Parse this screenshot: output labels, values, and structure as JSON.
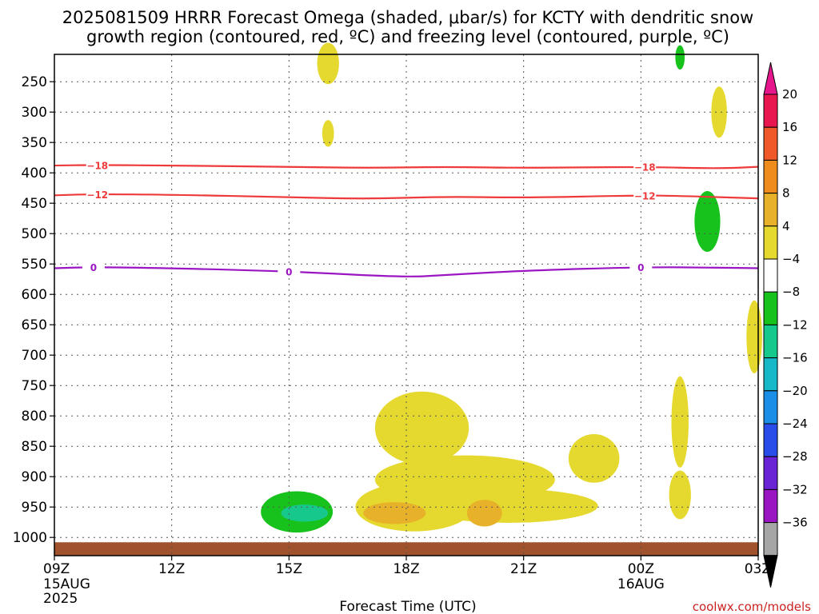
{
  "chart_data": {
    "type": "heatmap",
    "title_line1": "2025081509 HRRR Forecast Omega (shaded, μbar/s) for KCTY with dendritic snow",
    "title_line2": "growth region (contoured, red, ºC) and freezing level (contoured, purple, ºC)",
    "xlabel": "Forecast Time (UTC)",
    "credit": "coolwx.com/models",
    "x_range_hours": [
      0,
      18
    ],
    "y_range_hpa": [
      205,
      1030
    ],
    "x_ticks": [
      {
        "hour": 0,
        "label": "09Z",
        "date": "15AUG",
        "year": "2025"
      },
      {
        "hour": 3,
        "label": "12Z"
      },
      {
        "hour": 6,
        "label": "15Z"
      },
      {
        "hour": 9,
        "label": "18Z"
      },
      {
        "hour": 12,
        "label": "21Z"
      },
      {
        "hour": 15,
        "label": "00Z",
        "date": "16AUG"
      },
      {
        "hour": 18,
        "label": "03Z"
      }
    ],
    "y_ticks": [
      250,
      300,
      350,
      400,
      450,
      500,
      550,
      600,
      650,
      700,
      750,
      800,
      850,
      900,
      950,
      1000
    ],
    "grid": true,
    "colorbar": {
      "levels": [
        "20",
        "16",
        "12",
        "8",
        "4",
        "−4",
        "−8",
        "−12",
        "−16",
        "−20",
        "−24",
        "−28",
        "−32",
        "−36"
      ],
      "colors": [
        "#e8174f",
        "#f05a2a",
        "#ee8c1e",
        "#e7b22a",
        "#e5d92f",
        "#ffffff",
        "#18c21c",
        "#17c88c",
        "#17b8c8",
        "#1b8ee8",
        "#2a4ce8",
        "#6a24d6",
        "#9a16c2",
        "#a6a6a6"
      ],
      "top_color": "#e6168c",
      "bottom_color": "#000000"
    },
    "dendritic_contours": [
      {
        "label": "−18",
        "color": "#ee3a3a",
        "points": [
          [
            0,
            388
          ],
          [
            1,
            387
          ],
          [
            3,
            388
          ],
          [
            6,
            390
          ],
          [
            8,
            392
          ],
          [
            10,
            390
          ],
          [
            12,
            392
          ],
          [
            15,
            390
          ],
          [
            17,
            393
          ],
          [
            18,
            390
          ]
        ],
        "label_hours": [
          1.1,
          15.1
        ]
      },
      {
        "label": "−12",
        "color": "#ee3a3a",
        "points": [
          [
            0,
            437
          ],
          [
            1,
            435
          ],
          [
            3,
            436
          ],
          [
            6,
            440
          ],
          [
            8,
            443
          ],
          [
            10,
            439
          ],
          [
            12,
            441
          ],
          [
            15,
            437
          ],
          [
            16,
            438
          ],
          [
            18,
            442
          ]
        ],
        "label_hours": [
          1.1,
          15.1
        ]
      }
    ],
    "freezing_level": {
      "label": "0",
      "color": "#9a16c2",
      "points": [
        [
          0,
          557
        ],
        [
          1,
          555
        ],
        [
          3,
          557
        ],
        [
          6,
          562
        ],
        [
          9,
          572
        ],
        [
          10,
          568
        ],
        [
          12,
          561
        ],
        [
          15,
          555
        ],
        [
          17,
          556
        ],
        [
          18,
          557
        ]
      ],
      "label_hours": [
        1.0,
        6.0,
        15.0
      ]
    },
    "omega_regions": [
      {
        "value": 6,
        "color": "#e5d92f",
        "center": [
          7.0,
          220
        ],
        "half": [
          0.28,
          34
        ]
      },
      {
        "value": 6,
        "color": "#e5d92f",
        "center": [
          7.0,
          335
        ],
        "half": [
          0.15,
          22
        ]
      },
      {
        "value": 6,
        "color": "#e5d92f",
        "center": [
          17.0,
          300
        ],
        "half": [
          0.2,
          42
        ]
      },
      {
        "value": -6,
        "color": "#18c21c",
        "center": [
          16.0,
          210
        ],
        "half": [
          0.12,
          20
        ]
      },
      {
        "value": -6,
        "color": "#18c21c",
        "center": [
          16.7,
          480
        ],
        "half": [
          0.33,
          50
        ]
      },
      {
        "value": 6,
        "color": "#e5d92f",
        "center": [
          17.9,
          670
        ],
        "half": [
          0.2,
          60
        ]
      },
      {
        "value": 6,
        "color": "#e5d92f",
        "center": [
          16.0,
          810
        ],
        "half": [
          0.22,
          75
        ]
      },
      {
        "value": 6,
        "color": "#e5d92f",
        "center": [
          16.0,
          930
        ],
        "half": [
          0.28,
          40
        ]
      },
      {
        "value": 6,
        "color": "#e5d92f",
        "center": [
          13.8,
          870
        ],
        "half": [
          0.65,
          40
        ]
      },
      {
        "value": 6,
        "color": "#e5d92f",
        "center": [
          9.4,
          820
        ],
        "half": [
          1.2,
          60
        ]
      },
      {
        "value": 6,
        "color": "#e5d92f",
        "center": [
          10.5,
          905
        ],
        "half": [
          2.3,
          40
        ]
      },
      {
        "value": 6,
        "color": "#e5d92f",
        "center": [
          11.6,
          948
        ],
        "half": [
          2.3,
          28
        ]
      },
      {
        "value": 6,
        "color": "#e5d92f",
        "center": [
          9.2,
          950
        ],
        "half": [
          1.5,
          40
        ]
      },
      {
        "value": 10,
        "color": "#e7b22a",
        "center": [
          8.7,
          960
        ],
        "half": [
          0.8,
          18
        ]
      },
      {
        "value": 10,
        "color": "#e7b22a",
        "center": [
          11.0,
          960
        ],
        "half": [
          0.45,
          22
        ]
      },
      {
        "value": -6,
        "color": "#18c21c",
        "center": [
          6.2,
          958
        ],
        "half": [
          0.92,
          34
        ]
      },
      {
        "value": -10,
        "color": "#17c88c",
        "center": [
          6.4,
          960
        ],
        "half": [
          0.6,
          14
        ]
      }
    ],
    "terrain_color": "#a0522d"
  }
}
